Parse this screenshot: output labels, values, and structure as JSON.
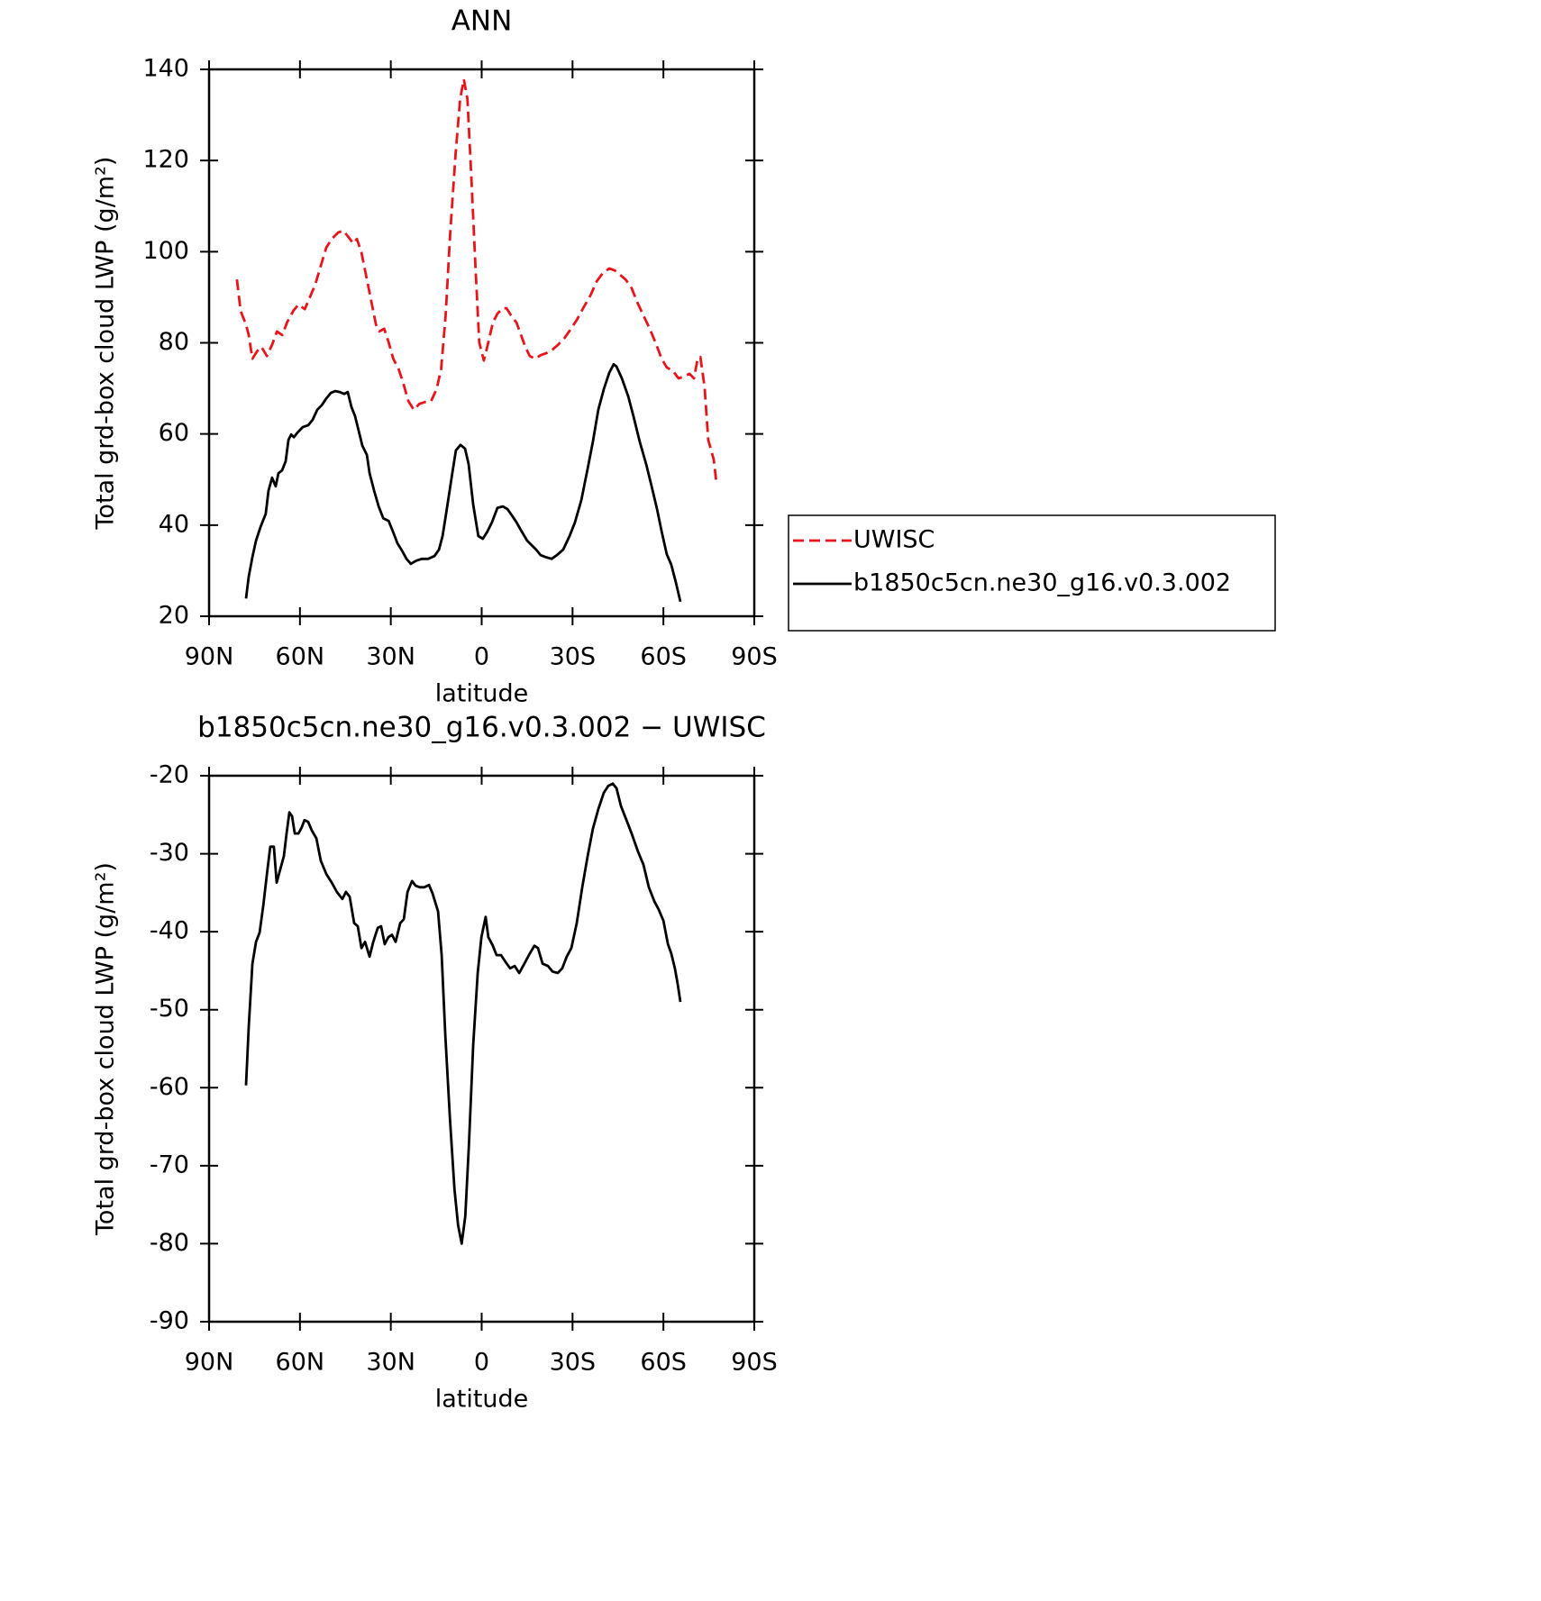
{
  "chart_data": [
    {
      "type": "line",
      "title": "ANN",
      "xlabel": "latitude",
      "ylabel": "Total grd-box cloud LWP (g/m²)",
      "xlim": [
        90,
        -90
      ],
      "xticks": [
        {
          "value": 90,
          "label": "90N"
        },
        {
          "value": 60,
          "label": "60N"
        },
        {
          "value": 30,
          "label": "30N"
        },
        0,
        {
          "value": -30,
          "label": "30S"
        },
        {
          "value": -60,
          "label": "60S"
        },
        {
          "value": -90,
          "label": "90S"
        }
      ],
      "ylim": [
        20,
        140
      ],
      "yticks": [
        20,
        40,
        60,
        80,
        100,
        120,
        140
      ],
      "legend": "right",
      "series": [
        {
          "name": "UWISC",
          "color": "#e8141c",
          "dash": "dashed",
          "x": [
            80.8,
            79.6,
            77.8,
            76.9,
            75.7,
            74.2,
            72.7,
            70.9,
            69.1,
            67.6,
            65.8,
            64.3,
            62.2,
            60.5,
            58.4,
            56.7,
            54.9,
            53.1,
            51.3,
            49.5,
            47.4,
            45.7,
            44.2,
            42.4,
            41.2,
            39.7,
            38.2,
            36.7,
            34.9,
            33.8,
            32.2,
            30.7,
            29.2,
            27.4,
            25.9,
            24.2,
            22.4,
            20.6,
            18.8,
            16.7,
            14.9,
            13.4,
            11.9,
            10.4,
            8.6,
            7.1,
            5.9,
            4.7,
            3.5,
            2.0,
            0.8,
            -0.7,
            -2.2,
            -3.7,
            -5.2,
            -7.0,
            -8.2,
            -9.7,
            -11.5,
            -13.0,
            -14.4,
            -15.9,
            -17.7,
            -19.5,
            -21.3,
            -23.4,
            -25.1,
            -27.2,
            -29.3,
            -31.4,
            -33.5,
            -35.9,
            -38.0,
            -40.0,
            -42.1,
            -43.9,
            -45.7,
            -47.5,
            -49.5,
            -51.3,
            -53.4,
            -55.5,
            -57.6,
            -59.4,
            -61.1,
            -63.2,
            -65.0,
            -66.8,
            -68.6,
            -70.1,
            -71.3,
            -72.2,
            -73.6,
            -74.8,
            -76.6,
            -77.5
          ],
          "values": [
            93.9,
            87.0,
            84.0,
            81.7,
            76.5,
            78.1,
            79.1,
            77.1,
            79.7,
            82.5,
            81.7,
            84.4,
            87.0,
            88.4,
            87.4,
            90.0,
            92.9,
            96.9,
            100.9,
            102.8,
            104.2,
            104.6,
            103.4,
            101.8,
            102.8,
            99.8,
            94.9,
            90.0,
            84.0,
            82.5,
            83.1,
            80.1,
            76.5,
            74.2,
            71.2,
            67.2,
            65.3,
            66.6,
            67.0,
            67.2,
            69.8,
            74.2,
            86.0,
            103.8,
            121.6,
            133.5,
            137.8,
            133.5,
            117.7,
            95.9,
            80.1,
            76.1,
            80.1,
            84.4,
            86.4,
            87.6,
            87.6,
            86.0,
            84.4,
            81.7,
            79.1,
            77.1,
            76.5,
            77.3,
            77.7,
            78.5,
            79.5,
            80.9,
            82.9,
            85.0,
            87.6,
            90.4,
            93.5,
            95.3,
            96.3,
            95.9,
            94.9,
            93.9,
            92.0,
            89.0,
            86.0,
            83.1,
            79.7,
            76.5,
            74.6,
            73.8,
            72.2,
            72.6,
            73.2,
            72.2,
            76.5,
            76.9,
            70.2,
            58.7,
            54.4,
            49.3
          ]
        },
        {
          "name": "b1850c5cn.ne30_g16.v0.3.002",
          "color": "#000000",
          "dash": "solid",
          "x": [
            77.8,
            76.9,
            75.7,
            74.5,
            73.0,
            71.3,
            70.4,
            69.2,
            68.0,
            67.1,
            65.9,
            64.7,
            63.8,
            62.9,
            62.0,
            60.8,
            59.1,
            57.3,
            55.8,
            54.3,
            52.8,
            51.3,
            49.8,
            48.3,
            46.9,
            45.4,
            44.2,
            43.0,
            41.8,
            40.6,
            39.4,
            37.9,
            37.0,
            35.5,
            34.0,
            32.5,
            30.7,
            29.3,
            27.8,
            26.3,
            24.8,
            23.4,
            21.6,
            19.8,
            17.7,
            15.6,
            14.1,
            12.9,
            11.5,
            9.7,
            8.5,
            7.0,
            5.5,
            4.3,
            2.8,
            1.1,
            -0.4,
            -1.9,
            -3.4,
            -5.2,
            -7.0,
            -8.5,
            -10.0,
            -11.5,
            -13.2,
            -15.0,
            -16.5,
            -18.0,
            -19.5,
            -21.0,
            -23.1,
            -24.8,
            -26.9,
            -29.0,
            -30.8,
            -32.9,
            -35.0,
            -36.7,
            -38.5,
            -40.3,
            -42.1,
            -43.6,
            -44.5,
            -46.3,
            -48.4,
            -50.1,
            -52.2,
            -54.3,
            -56.1,
            -57.9,
            -59.4,
            -61.1,
            -62.6,
            -64.1,
            -65.6
          ],
          "values": [
            23.9,
            28.7,
            33.0,
            36.6,
            39.6,
            42.5,
            47.5,
            50.4,
            48.5,
            51.4,
            52.0,
            54.0,
            58.7,
            59.9,
            59.3,
            60.3,
            61.5,
            61.9,
            63.1,
            65.3,
            66.3,
            67.8,
            69.0,
            69.4,
            69.2,
            68.8,
            69.2,
            65.9,
            63.9,
            60.7,
            57.4,
            55.4,
            51.4,
            47.5,
            44.1,
            41.5,
            40.9,
            38.6,
            36.0,
            34.4,
            32.6,
            31.5,
            32.2,
            32.6,
            32.6,
            33.2,
            34.6,
            37.6,
            43.5,
            51.4,
            56.4,
            57.6,
            56.8,
            53.4,
            44.5,
            37.6,
            37.0,
            38.6,
            40.6,
            43.8,
            44.1,
            43.5,
            42.1,
            40.6,
            38.6,
            36.6,
            35.6,
            34.6,
            33.4,
            33.0,
            32.6,
            33.4,
            34.6,
            37.6,
            40.6,
            45.5,
            52.4,
            58.3,
            65.3,
            69.8,
            73.4,
            75.3,
            74.8,
            72.2,
            68.2,
            63.9,
            58.3,
            53.4,
            48.5,
            43.5,
            38.6,
            33.6,
            31.3,
            27.5,
            23.2
          ]
        }
      ]
    },
    {
      "type": "line",
      "title": "b1850c5cn.ne30_g16.v0.3.002 − UWISC",
      "xlabel": "latitude",
      "ylabel": "Total grd-box cloud LWP (g/m²)",
      "xlim": [
        90,
        -90
      ],
      "xticks": [
        {
          "value": 90,
          "label": "90N"
        },
        {
          "value": 60,
          "label": "60N"
        },
        {
          "value": 30,
          "label": "30N"
        },
        0,
        {
          "value": -30,
          "label": "30S"
        },
        {
          "value": -60,
          "label": "60S"
        },
        {
          "value": -90,
          "label": "90S"
        }
      ],
      "ylim": [
        -90,
        -20
      ],
      "yticks": [
        -90,
        -80,
        -70,
        -60,
        -50,
        -40,
        -30,
        -20
      ],
      "series": [
        {
          "color": "#000000",
          "dash": "solid",
          "x": [
            77.8,
            76.9,
            75.7,
            74.5,
            73.3,
            72.1,
            70.9,
            69.8,
            68.6,
            67.7,
            66.5,
            65.3,
            64.4,
            63.5,
            62.6,
            61.7,
            60.5,
            59.4,
            58.5,
            57.3,
            56.1,
            54.6,
            53.1,
            51.3,
            49.5,
            47.8,
            46.0,
            44.8,
            43.6,
            42.1,
            40.9,
            39.7,
            38.5,
            37.0,
            35.8,
            34.3,
            33.2,
            32.0,
            30.8,
            29.6,
            28.4,
            26.9,
            25.7,
            24.5,
            23.0,
            21.8,
            20.4,
            18.9,
            17.4,
            16.2,
            14.4,
            13.2,
            12.0,
            10.5,
            9.0,
            7.8,
            6.6,
            5.4,
            4.2,
            2.8,
            1.3,
            0.1,
            -1.3,
            -2.2,
            -3.7,
            -4.9,
            -6.4,
            -7.9,
            -9.4,
            -10.9,
            -12.4,
            -14.1,
            -15.6,
            -17.4,
            -18.6,
            -20.1,
            -21.9,
            -23.4,
            -25.1,
            -26.6,
            -28.1,
            -29.6,
            -31.4,
            -33.2,
            -35.0,
            -36.7,
            -38.5,
            -40.3,
            -41.8,
            -43.3,
            -44.5,
            -46.0,
            -47.8,
            -49.5,
            -51.6,
            -53.4,
            -55.2,
            -57.0,
            -58.5,
            -60.0,
            -61.5,
            -62.6,
            -63.8,
            -64.7,
            -65.6
          ],
          "values": [
            -59.7,
            -52.2,
            -44.1,
            -41.3,
            -40.1,
            -36.6,
            -32.6,
            -29.1,
            -29.1,
            -33.7,
            -32.0,
            -30.3,
            -27.4,
            -24.7,
            -25.2,
            -27.4,
            -27.4,
            -26.6,
            -25.7,
            -25.9,
            -27.0,
            -28.0,
            -30.9,
            -32.6,
            -33.7,
            -34.9,
            -35.8,
            -34.9,
            -35.5,
            -38.9,
            -39.3,
            -42.1,
            -41.3,
            -43.2,
            -41.3,
            -39.5,
            -39.3,
            -41.6,
            -40.7,
            -40.4,
            -41.3,
            -38.9,
            -38.4,
            -34.9,
            -33.5,
            -34.1,
            -34.3,
            -34.3,
            -34.0,
            -35.1,
            -37.4,
            -43.0,
            -53.4,
            -63.8,
            -73.0,
            -77.6,
            -80.0,
            -76.5,
            -67.2,
            -54.5,
            -45.3,
            -40.7,
            -38.1,
            -40.7,
            -41.8,
            -43.0,
            -43.0,
            -43.9,
            -44.7,
            -44.4,
            -45.3,
            -44.1,
            -43.0,
            -41.8,
            -42.1,
            -44.1,
            -44.4,
            -45.1,
            -45.3,
            -44.7,
            -43.2,
            -42.1,
            -38.9,
            -34.3,
            -30.3,
            -26.8,
            -24.3,
            -22.2,
            -21.3,
            -21.0,
            -21.6,
            -23.9,
            -25.7,
            -27.4,
            -29.7,
            -31.4,
            -34.3,
            -36.1,
            -37.2,
            -38.6,
            -41.6,
            -42.8,
            -44.7,
            -46.7,
            -49.0
          ]
        }
      ]
    }
  ]
}
